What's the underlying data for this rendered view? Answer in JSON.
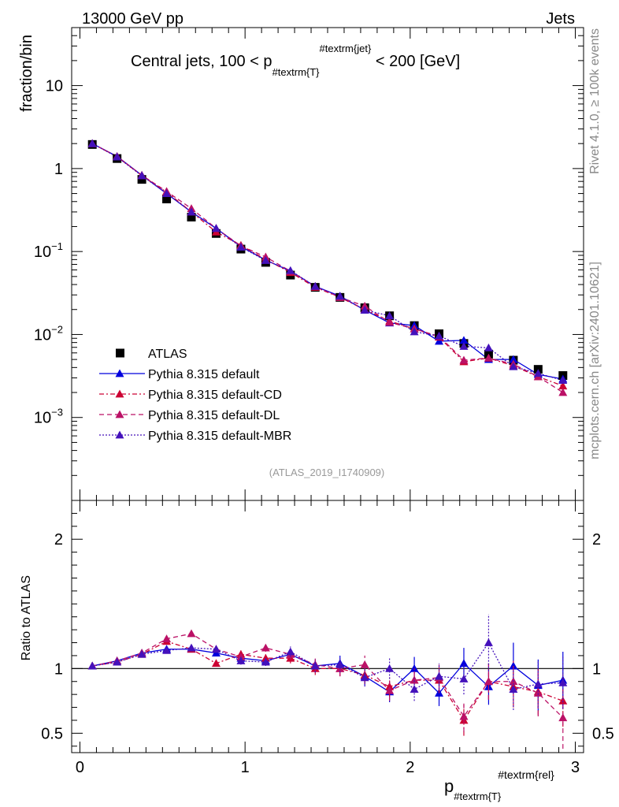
{
  "header": {
    "left": "13000 GeV pp",
    "right": "Jets",
    "side_top": "Rivet 4.1.0, ≥ 100k events",
    "side_bottom": "mcplots.cern.ch [arXiv:2401.10621]"
  },
  "chart_data": [
    {
      "type": "scatter",
      "panel": "main",
      "title_parts": [
        "Central jets, 100 < p",
        "#textrm{T}",
        "#textrm{jet}",
        " < 200 [GeV]"
      ],
      "ylabel": "fraction/bin",
      "yscale": "log",
      "ylim": [
        0.0001,
        50
      ],
      "xlim": [
        -0.05,
        3.05
      ],
      "y_ticks": [
        {
          "v": 0.001,
          "base": "10",
          "exp": "−3"
        },
        {
          "v": 0.01,
          "base": "10",
          "exp": "−2"
        },
        {
          "v": 0.1,
          "base": "10",
          "exp": "−1"
        },
        {
          "v": 1,
          "base": "1",
          "exp": ""
        },
        {
          "v": 10,
          "base": "10",
          "exp": ""
        }
      ],
      "watermark": "(ATLAS_2019_I1740909)",
      "x": [
        0.075,
        0.225,
        0.375,
        0.525,
        0.675,
        0.825,
        0.975,
        1.125,
        1.275,
        1.425,
        1.575,
        1.725,
        1.875,
        2.025,
        2.175,
        2.325,
        2.475,
        2.625,
        2.775,
        2.925
      ],
      "series": [
        {
          "name": "ATLAS",
          "color": "#000000",
          "marker": "square",
          "dash": "",
          "values": [
            1.95,
            1.32,
            0.74,
            0.43,
            0.26,
            0.165,
            0.107,
            0.074,
            0.052,
            0.037,
            0.028,
            0.021,
            0.0168,
            0.0128,
            0.0102,
            0.0078,
            0.0058,
            0.0049,
            0.0038,
            0.0032
          ]
        },
        {
          "name": "Pythia 8.315 default",
          "color": "#0000dd",
          "marker": "triangle",
          "dash": "",
          "values": [
            2.0,
            1.4,
            0.83,
            0.5,
            0.3,
            0.19,
            0.115,
            0.079,
            0.058,
            0.038,
            0.029,
            0.0197,
            0.0138,
            0.0128,
            0.0083,
            0.0085,
            0.005,
            0.005,
            0.0033,
            0.0029
          ]
        },
        {
          "name": "Pythia 8.315 default-CD",
          "color": "#cc0033",
          "marker": "triangle",
          "dash": "6,3,2,3",
          "values": [
            2.0,
            1.39,
            0.82,
            0.52,
            0.3,
            0.172,
            0.119,
            0.08,
            0.056,
            0.037,
            0.028,
            0.02,
            0.0145,
            0.0117,
            0.0093,
            0.0047,
            0.0052,
            0.0042,
            0.0031,
            0.0024
          ]
        },
        {
          "name": "Pythia 8.315 default-DL",
          "color": "#bb1166",
          "marker": "triangle",
          "dash": "6,4",
          "values": [
            2.0,
            1.4,
            0.83,
            0.53,
            0.33,
            0.19,
            0.117,
            0.086,
            0.058,
            0.038,
            0.028,
            0.022,
            0.014,
            0.0117,
            0.0095,
            0.0049,
            0.0052,
            0.0044,
            0.0031,
            0.002
          ]
        },
        {
          "name": "Pythia 8.315 default-MBR",
          "color": "#4411bb",
          "marker": "triangle",
          "dash": "2,2",
          "values": [
            2.0,
            1.38,
            0.82,
            0.5,
            0.3,
            0.19,
            0.113,
            0.078,
            0.059,
            0.038,
            0.029,
            0.0197,
            0.0168,
            0.0108,
            0.0096,
            0.0072,
            0.0069,
            0.0041,
            0.0034,
            0.0028
          ]
        }
      ],
      "legend_position": "lower-left"
    },
    {
      "type": "scatter",
      "panel": "ratio",
      "ylabel": "Ratio to ATLAS",
      "ylim": [
        0.35,
        2.3
      ],
      "xlim": [
        -0.05,
        3.05
      ],
      "y_ticks": [
        0.5,
        1,
        2
      ],
      "x_ticks": [
        0,
        1,
        2,
        3
      ],
      "xlabel_parts": [
        "p",
        "#textrm{T}",
        "#textrm{rel}"
      ],
      "x": [
        0.075,
        0.225,
        0.375,
        0.525,
        0.675,
        0.825,
        0.975,
        1.125,
        1.275,
        1.425,
        1.575,
        1.725,
        1.875,
        2.025,
        2.175,
        2.325,
        2.475,
        2.625,
        2.775,
        2.925
      ],
      "series": [
        {
          "name": "Pythia 8.315 default",
          "color": "#0000dd",
          "dash": "",
          "values": [
            1.02,
            1.06,
            1.12,
            1.15,
            1.15,
            1.12,
            1.08,
            1.06,
            1.11,
            1.02,
            1.04,
            0.94,
            0.82,
            1.0,
            0.81,
            1.04,
            0.86,
            1.02,
            0.87,
            0.91
          ],
          "errors": [
            0.01,
            0.01,
            0.01,
            0.02,
            0.02,
            0.02,
            0.03,
            0.03,
            0.04,
            0.05,
            0.06,
            0.07,
            0.08,
            0.09,
            0.1,
            0.12,
            0.14,
            0.18,
            0.2,
            0.22
          ]
        },
        {
          "name": "Pythia 8.315 default-CD",
          "color": "#cc0033",
          "dash": "6,3,2,3",
          "values": [
            1.02,
            1.05,
            1.11,
            1.21,
            1.15,
            1.04,
            1.11,
            1.08,
            1.08,
            1.0,
            1.0,
            0.95,
            0.86,
            0.91,
            0.91,
            0.6,
            0.9,
            0.86,
            0.82,
            0.75
          ],
          "errors": [
            0.01,
            0.01,
            0.01,
            0.02,
            0.02,
            0.02,
            0.03,
            0.03,
            0.04,
            0.05,
            0.06,
            0.07,
            0.08,
            0.09,
            0.1,
            0.12,
            0.14,
            0.16,
            0.18,
            0.2
          ]
        },
        {
          "name": "Pythia 8.315 default-DL",
          "color": "#bb1166",
          "dash": "6,4",
          "values": [
            1.02,
            1.06,
            1.12,
            1.23,
            1.27,
            1.15,
            1.09,
            1.16,
            1.11,
            1.03,
            1.0,
            1.03,
            0.83,
            0.91,
            0.93,
            0.63,
            0.9,
            0.9,
            0.81,
            0.62
          ],
          "errors": [
            0.01,
            0.01,
            0.01,
            0.02,
            0.02,
            0.02,
            0.03,
            0.03,
            0.04,
            0.05,
            0.06,
            0.07,
            0.08,
            0.09,
            0.1,
            0.12,
            0.14,
            0.16,
            0.18,
            0.24
          ]
        },
        {
          "name": "Pythia 8.315 default-MBR",
          "color": "#4411bb",
          "dash": "2,2",
          "values": [
            1.02,
            1.05,
            1.11,
            1.14,
            1.16,
            1.15,
            1.06,
            1.05,
            1.13,
            1.02,
            1.03,
            0.93,
            1.0,
            0.84,
            0.94,
            0.92,
            1.2,
            0.84,
            0.88,
            0.89
          ],
          "errors": [
            0.01,
            0.01,
            0.01,
            0.02,
            0.02,
            0.02,
            0.03,
            0.03,
            0.04,
            0.05,
            0.06,
            0.07,
            0.08,
            0.09,
            0.1,
            0.12,
            0.22,
            0.16,
            0.18,
            0.2
          ]
        }
      ]
    }
  ]
}
